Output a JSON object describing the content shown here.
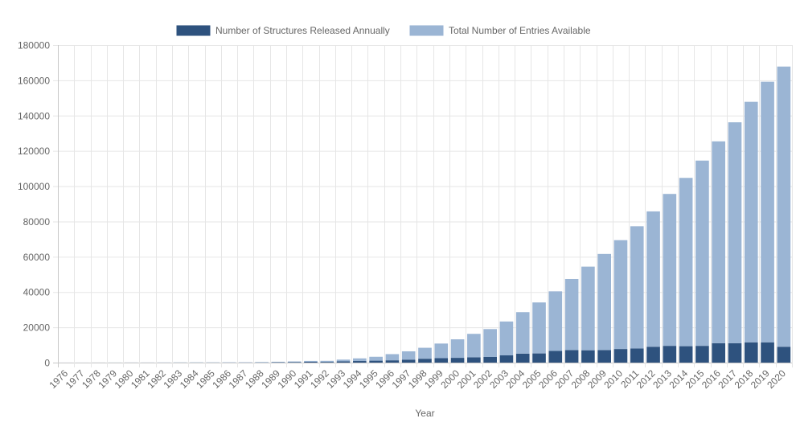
{
  "chart_data": {
    "type": "bar",
    "stacked": true,
    "title": "",
    "xlabel": "Year",
    "ylabel": "",
    "ylim": [
      0,
      180000
    ],
    "yticks": [
      0,
      20000,
      40000,
      60000,
      80000,
      100000,
      120000,
      140000,
      160000,
      180000
    ],
    "grid": true,
    "legend_position": "top-center",
    "categories": [
      "1976",
      "1977",
      "1978",
      "1979",
      "1980",
      "1981",
      "1982",
      "1983",
      "1984",
      "1985",
      "1986",
      "1987",
      "1988",
      "1989",
      "1990",
      "1991",
      "1992",
      "1993",
      "1994",
      "1995",
      "1996",
      "1997",
      "1998",
      "1999",
      "2000",
      "2001",
      "2002",
      "2003",
      "2004",
      "2005",
      "2006",
      "2007",
      "2008",
      "2009",
      "2010",
      "2011",
      "2012",
      "2013",
      "2014",
      "2015",
      "2016",
      "2017",
      "2018",
      "2019",
      "2020"
    ],
    "series": [
      {
        "name": "Number of Structures Released Annually",
        "color": "#2e527e",
        "values": [
          13,
          10,
          20,
          20,
          20,
          15,
          25,
          40,
          40,
          20,
          50,
          50,
          100,
          180,
          250,
          450,
          400,
          700,
          900,
          1100,
          1300,
          1700,
          2200,
          2500,
          2700,
          3000,
          3200,
          4100,
          5100,
          5200,
          6600,
          7100,
          7000,
          7100,
          7700,
          8000,
          9000,
          9500,
          9300,
          9500,
          11000,
          11000,
          11500,
          11500,
          9000
        ]
      },
      {
        "name": "Total Number of Entries Available",
        "color": "#9bb5d4",
        "values": [
          0,
          5,
          10,
          20,
          40,
          55,
          70,
          90,
          130,
          150,
          170,
          200,
          250,
          300,
          400,
          500,
          600,
          1000,
          1500,
          2200,
          3500,
          4700,
          6200,
          8300,
          10500,
          13300,
          15800,
          19200,
          23500,
          28900,
          33800,
          40300,
          47400,
          54500,
          61700,
          69300,
          76700,
          86100,
          95400,
          105000,
          114400,
          125200,
          136300,
          147700,
          158800
        ]
      }
    ]
  }
}
